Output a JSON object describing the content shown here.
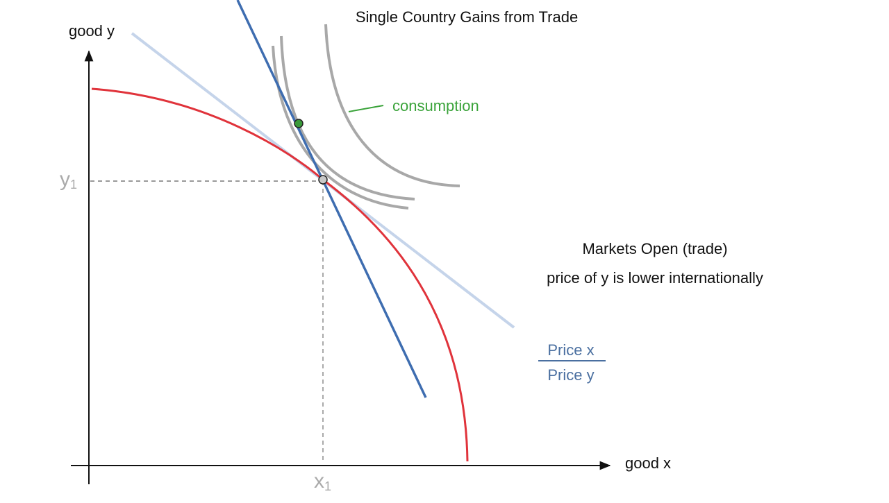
{
  "title": "Single Country Gains from Trade",
  "axes": {
    "y_label": "good y",
    "x_label": "good x",
    "y_marker": {
      "base": "y",
      "sub": "1"
    },
    "x_marker": {
      "base": "x",
      "sub": "1"
    }
  },
  "annotations": {
    "consumption": "consumption",
    "markets": "Markets Open (trade)",
    "price_note": "price of y is lower internationally"
  },
  "fraction": {
    "numerator": "Price x",
    "denominator": "Price y"
  }
}
